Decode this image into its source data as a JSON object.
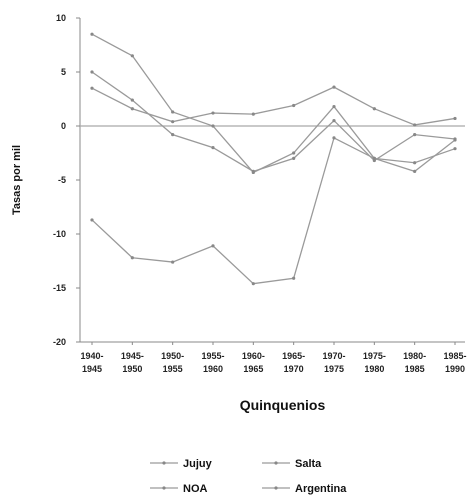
{
  "chart_data": {
    "type": "line",
    "title": "",
    "xlabel": "Quinquenios",
    "ylabel": "Tasas por mil",
    "ylim": [
      -20,
      10
    ],
    "yticks": [
      10,
      5,
      0,
      -5,
      -10,
      -15,
      -20
    ],
    "ytick_labels": [
      "10",
      "5",
      "0",
      "-5",
      "-10",
      "-15",
      "-20"
    ],
    "categories": [
      [
        "1940-",
        "1945"
      ],
      [
        "1945-",
        "1950"
      ],
      [
        "1950-",
        "1955"
      ],
      [
        "1955-",
        "1960"
      ],
      [
        "1960-",
        "1965"
      ],
      [
        "1965-",
        "1970"
      ],
      [
        "1970-",
        "1975"
      ],
      [
        "1975-",
        "1980"
      ],
      [
        "1980-",
        "1985"
      ],
      [
        "1985-",
        "1990"
      ]
    ],
    "zero_line": true,
    "grid": false,
    "legend_position": "bottom",
    "series": [
      {
        "name": "Jujuy",
        "values": [
          8.5,
          6.5,
          1.3,
          0,
          -4.3,
          -2.5,
          1.8,
          -3.0,
          -4.2,
          -1.3
        ],
        "color": "#9a9a9a"
      },
      {
        "name": "Salta",
        "values": [
          5.0,
          2.4,
          -0.8,
          -2.0,
          -4.2,
          -3.0,
          0.5,
          -3.2,
          -0.8,
          -1.2
        ],
        "color": "#9a9a9a"
      },
      {
        "name": "NOA",
        "values": [
          3.5,
          1.6,
          0.4,
          1.2,
          1.1,
          1.9,
          3.6,
          1.6,
          0.1,
          0.7
        ],
        "color": "#9a9a9a"
      },
      {
        "name": "Argentina",
        "values": [
          -8.7,
          -12.2,
          -12.6,
          -11.1,
          -14.6,
          -14.1,
          -1.1,
          -3.0,
          -3.4,
          -2.1
        ],
        "color": "#9a9a9a"
      }
    ]
  }
}
